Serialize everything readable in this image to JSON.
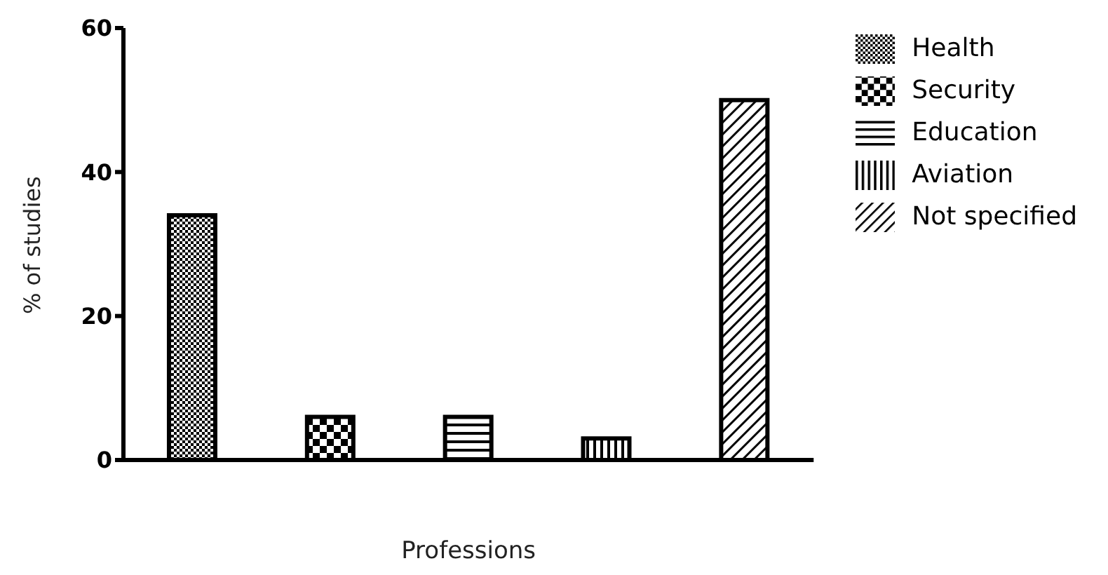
{
  "chart_data": {
    "type": "bar",
    "xlabel": "Professions",
    "ylabel": "% of studies",
    "categories": [
      null,
      null,
      null,
      null,
      null
    ],
    "series": [
      {
        "name": "Health",
        "color": "#000000",
        "values": [
          34,
          null,
          null,
          null,
          null
        ]
      },
      {
        "name": "Security",
        "color": "#000000",
        "values": [
          null,
          6,
          null,
          null,
          null
        ]
      },
      {
        "name": "Education",
        "color": "#000000",
        "values": [
          null,
          null,
          6,
          null,
          null
        ]
      },
      {
        "name": "Aviation",
        "color": "#000000",
        "values": [
          null,
          null,
          null,
          3,
          null
        ]
      },
      {
        "name": "Not specified",
        "color": "#000000",
        "values": [
          null,
          null,
          null,
          null,
          50
        ]
      }
    ],
    "ylim": [
      0,
      60
    ],
    "yticks": [
      0,
      20,
      40,
      60
    ],
    "legend": "right",
    "grid": false
  }
}
